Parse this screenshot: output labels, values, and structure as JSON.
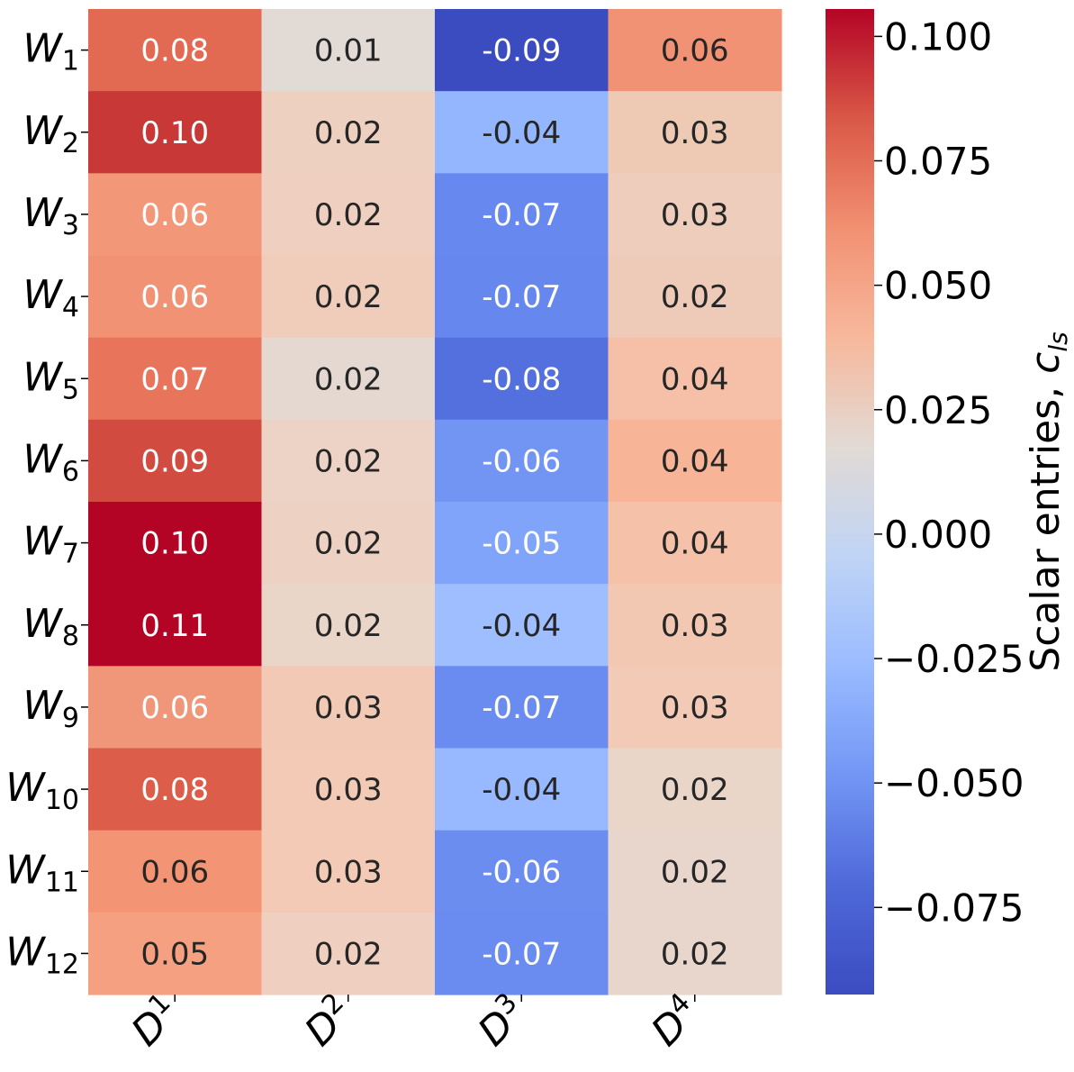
{
  "chart_data": {
    "type": "heatmap",
    "title": "",
    "row_labels": [
      {
        "base": "W",
        "sub": "1"
      },
      {
        "base": "W",
        "sub": "2"
      },
      {
        "base": "W",
        "sub": "3"
      },
      {
        "base": "W",
        "sub": "4"
      },
      {
        "base": "W",
        "sub": "5"
      },
      {
        "base": "W",
        "sub": "6"
      },
      {
        "base": "W",
        "sub": "7"
      },
      {
        "base": "W",
        "sub": "8"
      },
      {
        "base": "W",
        "sub": "9"
      },
      {
        "base": "W",
        "sub": "10"
      },
      {
        "base": "W",
        "sub": "11"
      },
      {
        "base": "W",
        "sub": "12"
      }
    ],
    "col_labels": [
      {
        "base": "D",
        "sup": "1"
      },
      {
        "base": "D",
        "sup": "2"
      },
      {
        "base": "D",
        "sup": "3"
      },
      {
        "base": "D",
        "sup": "4"
      }
    ],
    "values": [
      [
        0.08,
        0.01,
        -0.09,
        0.06
      ],
      [
        0.1,
        0.02,
        -0.04,
        0.03
      ],
      [
        0.06,
        0.02,
        -0.07,
        0.03
      ],
      [
        0.06,
        0.02,
        -0.07,
        0.02
      ],
      [
        0.07,
        0.02,
        -0.08,
        0.04
      ],
      [
        0.09,
        0.02,
        -0.06,
        0.04
      ],
      [
        0.1,
        0.02,
        -0.05,
        0.04
      ],
      [
        0.11,
        0.02,
        -0.04,
        0.03
      ],
      [
        0.06,
        0.03,
        -0.07,
        0.03
      ],
      [
        0.08,
        0.03,
        -0.04,
        0.02
      ],
      [
        0.06,
        0.03,
        -0.06,
        0.02
      ],
      [
        0.05,
        0.02,
        -0.07,
        0.02
      ]
    ],
    "cell_colors": [
      [
        "#e26952",
        "#e2dad5",
        "#3b4cc0",
        "#f29274"
      ],
      [
        "#c83836",
        "#eed0c0",
        "#94b6ff",
        "#eecab5"
      ],
      [
        "#f39779",
        "#efcfbf",
        "#6788ee",
        "#efcdbc"
      ],
      [
        "#f29274",
        "#f0cdbb",
        "#6687ed",
        "#eecbb8"
      ],
      [
        "#e7745b",
        "#e5d8d1",
        "#5470de",
        "#f5c0a7"
      ],
      [
        "#d24b40",
        "#ecd3c5",
        "#7295f4",
        "#f7b497"
      ],
      [
        "#b40426",
        "#edd2c3",
        "#81a4fb",
        "#f5c1a9"
      ],
      [
        "#b40426",
        "#ead5c9",
        "#9ebeff",
        "#f3c8b2"
      ],
      [
        "#f0977a",
        "#f2c9b4",
        "#6a8bef",
        "#f2cab5"
      ],
      [
        "#dc5d4a",
        "#f2cab5",
        "#98b9ff",
        "#ead5c9"
      ],
      [
        "#f39475",
        "#f2cab5",
        "#6b8df0",
        "#e8d6cc"
      ],
      [
        "#f5a081",
        "#efcfbf",
        "#6a8bef",
        "#e8d6cc"
      ]
    ],
    "cell_text_colors": [
      [
        "#ffffff",
        "#262626",
        "#ffffff",
        "#262626"
      ],
      [
        "#ffffff",
        "#262626",
        "#262626",
        "#262626"
      ],
      [
        "#ffffff",
        "#262626",
        "#ffffff",
        "#262626"
      ],
      [
        "#ffffff",
        "#262626",
        "#ffffff",
        "#262626"
      ],
      [
        "#ffffff",
        "#262626",
        "#ffffff",
        "#262626"
      ],
      [
        "#ffffff",
        "#262626",
        "#ffffff",
        "#262626"
      ],
      [
        "#ffffff",
        "#262626",
        "#ffffff",
        "#262626"
      ],
      [
        "#ffffff",
        "#262626",
        "#262626",
        "#262626"
      ],
      [
        "#ffffff",
        "#262626",
        "#ffffff",
        "#262626"
      ],
      [
        "#ffffff",
        "#262626",
        "#262626",
        "#262626"
      ],
      [
        "#262626",
        "#262626",
        "#ffffff",
        "#262626"
      ],
      [
        "#262626",
        "#262626",
        "#ffffff",
        "#262626"
      ]
    ],
    "colormap": "coolwarm",
    "colorbar": {
      "label_text": "Scalar entries, ",
      "label_symbol": "c",
      "label_subscript": "ls",
      "vmin": -0.0925,
      "vmax": 0.1055,
      "ticks": [
        0.1,
        0.075,
        0.05,
        0.025,
        0.0,
        -0.025,
        -0.05,
        -0.075
      ],
      "tick_labels": [
        "0.100",
        "0.075",
        "0.050",
        "0.025",
        "0.000",
        "−0.025",
        "−0.050",
        "−0.075"
      ],
      "gradient_stops": [
        "#b40426",
        "#d95847",
        "#f29072",
        "#f7b89c",
        "#e2dad5",
        "#c0d4f5",
        "#9abbff",
        "#7396f5",
        "#4f69d9",
        "#3b4cc0"
      ]
    }
  }
}
